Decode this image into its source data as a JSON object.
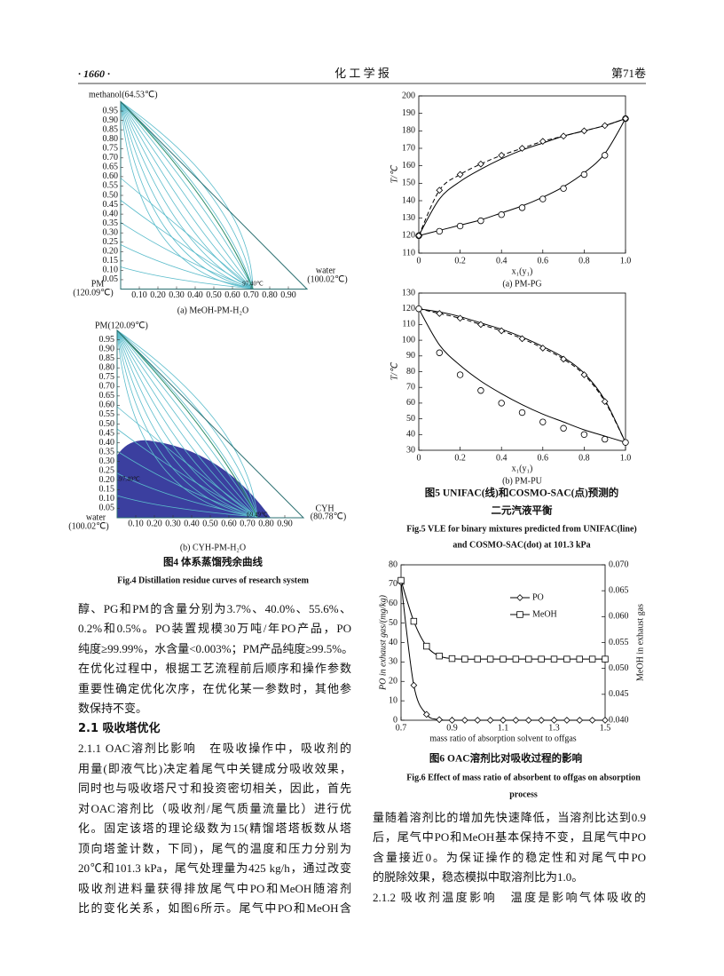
{
  "header": {
    "page": "· 1660 ·",
    "journal": "化 工 学 报",
    "volume": "第71卷"
  },
  "chart_data": [
    {
      "type": "ternary",
      "top_label": "methanol(64.53℃)",
      "left_label": "PM",
      "left_note": "(120.09℃)",
      "right_label": "water",
      "right_note": "(100.02℃)",
      "annotations": [
        "97.40℃"
      ],
      "left_ticks": [
        0.95,
        {
          "value": 0.9,
          "label": "0.90"
        },
        0.85,
        {
          "value": 0.8,
          "label": "0.80"
        },
        0.75,
        {
          "value": 0.7,
          "label": "0.70"
        },
        0.65,
        {
          "value": 0.6,
          "label": "0.60"
        },
        0.55,
        {
          "value": 0.5,
          "label": "0.50"
        },
        0.45,
        {
          "value": 0.4,
          "label": "0.40"
        },
        0.35,
        {
          "value": 0.3,
          "label": "0.30"
        },
        0.25,
        {
          "value": 0.2,
          "label": "0.20"
        },
        0.15,
        {
          "value": 0.1,
          "label": "0.10"
        },
        0.05
      ],
      "bottom_ticks": [
        {
          "value": 0.1,
          "label": "0.10"
        },
        {
          "value": 0.2,
          "label": "0.20"
        },
        {
          "value": 0.3,
          "label": "0.30"
        },
        {
          "value": 0.4,
          "label": "0.40"
        },
        {
          "value": 0.5,
          "label": "0.50"
        },
        {
          "value": 0.6,
          "label": "0.60"
        },
        {
          "value": 0.7,
          "label": "0.70"
        },
        {
          "value": 0.8,
          "label": "0.80"
        },
        {
          "value": 0.9,
          "label": "0.90"
        }
      ],
      "caption": "(a) MeOH-PM-H₂O"
    },
    {
      "type": "ternary",
      "top_label": "PM(120.09℃)",
      "left_label": "water",
      "left_note": "(100.02℃)",
      "right_label": "CYH",
      "right_note": "(80.78℃)",
      "annotations": [
        "97.40℃",
        "69.49℃"
      ],
      "left_ticks": [
        0.95,
        {
          "value": 0.9,
          "label": "0.90"
        },
        0.85,
        {
          "value": 0.8,
          "label": "0.80"
        },
        0.75,
        {
          "value": 0.7,
          "label": "0.70"
        },
        0.65,
        {
          "value": 0.6,
          "label": "0.60"
        },
        0.55,
        {
          "value": 0.5,
          "label": "0.50"
        },
        0.45,
        {
          "value": 0.4,
          "label": "0.40"
        },
        0.35,
        {
          "value": 0.3,
          "label": "0.30"
        },
        0.25,
        {
          "value": 0.2,
          "label": "0.20"
        },
        0.15,
        {
          "value": 0.1,
          "label": "0.10"
        },
        0.05
      ],
      "bottom_ticks": [
        {
          "value": 0.1,
          "label": "0.10"
        },
        {
          "value": 0.2,
          "label": "0.20"
        },
        {
          "value": 0.3,
          "label": "0.30"
        },
        {
          "value": 0.4,
          "label": "0.40"
        },
        {
          "value": 0.5,
          "label": "0.50"
        },
        {
          "value": 0.6,
          "label": "0.60"
        },
        {
          "value": 0.7,
          "label": "0.70"
        },
        {
          "value": 0.8,
          "label": "0.80"
        },
        {
          "value": 0.9,
          "label": "0.90"
        }
      ],
      "caption": "(b) CYH-PM-H₂O"
    },
    {
      "type": "line",
      "ylabel": "T/℃",
      "xlabel": "x₁(y₁)",
      "caption": "(a) PM-PG",
      "x": [
        0,
        0.1,
        0.2,
        0.3,
        0.4,
        0.5,
        0.6,
        0.7,
        0.8,
        0.9,
        1.0
      ],
      "xlim": [
        0,
        1
      ],
      "xticks": [
        0,
        0.2,
        0.4,
        0.6,
        0.8,
        {
          "value": 1,
          "label": "1.0"
        }
      ],
      "ylim": [
        110,
        200
      ],
      "yticks": [
        110,
        120,
        130,
        140,
        150,
        160,
        170,
        180,
        190,
        200
      ],
      "series": [
        {
          "color": "#000000",
          "line": "solid",
          "marker": "none",
          "values": [
            120,
            123,
            126,
            129,
            133,
            137,
            142,
            148,
            156,
            167,
            187
          ]
        },
        {
          "color": "#000000",
          "line": "none",
          "marker": "circle",
          "values": [
            120,
            122.5,
            125.5,
            128.5,
            132,
            136,
            141,
            147,
            155,
            166,
            187
          ]
        },
        {
          "color": "#000000",
          "line": "solid",
          "marker": "none",
          "values": [
            120,
            141,
            151,
            158,
            164,
            169,
            173,
            177,
            180,
            183,
            187
          ]
        },
        {
          "color": "#000000",
          "line": "dashed",
          "marker": "diamond",
          "values": [
            120,
            146,
            155,
            161,
            166,
            170,
            174,
            177,
            180,
            183,
            187
          ]
        }
      ]
    },
    {
      "type": "line",
      "ylabel": "T/℃",
      "xlabel": "x₁(y₁)",
      "caption": "(b) PM-PU",
      "x": [
        0,
        0.1,
        0.2,
        0.3,
        0.4,
        0.5,
        0.6,
        0.7,
        0.8,
        0.9,
        1.0
      ],
      "xlim": [
        0,
        1
      ],
      "xticks": [
        0,
        0.2,
        0.4,
        0.6,
        0.8,
        {
          "value": 1,
          "label": "1.0"
        }
      ],
      "ylim": [
        30,
        130
      ],
      "yticks": [
        30,
        40,
        50,
        60,
        70,
        80,
        90,
        100,
        110,
        120,
        130
      ],
      "series": [
        {
          "color": "#000000",
          "line": "solid",
          "marker": "none",
          "values": [
            120,
            118,
            115,
            111,
            107,
            102,
            96,
            89,
            79,
            62,
            35
          ]
        },
        {
          "color": "#000000",
          "line": "dashed",
          "marker": "diamond",
          "values": [
            120,
            117,
            114,
            110,
            106,
            101,
            95,
            88,
            78,
            61,
            35
          ]
        },
        {
          "color": "#000000",
          "line": "solid",
          "marker": "none",
          "values": [
            120,
            97,
            84,
            74,
            66,
            59,
            53,
            48,
            43,
            39,
            35
          ]
        },
        {
          "color": "#000000",
          "line": "none",
          "marker": "circle",
          "values": [
            120,
            92,
            78,
            68,
            60,
            54,
            48,
            44,
            40,
            37,
            35
          ]
        }
      ]
    },
    {
      "type": "line",
      "ylabel": "PO in exhaust gas/(mg/kg)",
      "y2label": "MeOH in exhaust gas",
      "xlabel": "mass ratio of absorption solvent to offgas",
      "legend": "upper right",
      "x": [
        0.7,
        0.75,
        0.8,
        0.85,
        0.9,
        0.95,
        1.0,
        1.05,
        1.1,
        1.15,
        1.2,
        1.25,
        1.3,
        1.35,
        1.4,
        1.45,
        1.5
      ],
      "xlim": [
        0.7,
        1.5
      ],
      "xticks": [
        0.7,
        0.9,
        1.1,
        1.3,
        1.5
      ],
      "ylim": [
        0,
        80
      ],
      "yticks": [
        0,
        10,
        20,
        30,
        40,
        50,
        60,
        70,
        80
      ],
      "y2lim": [
        0.04,
        0.07
      ],
      "y2ticks": [
        {
          "value": 0.04,
          "label": "0.040"
        },
        0.045,
        {
          "value": 0.05,
          "label": "0.050"
        },
        0.055,
        {
          "value": 0.06,
          "label": "0.060"
        },
        0.065,
        {
          "value": 0.07,
          "label": "0.070"
        }
      ],
      "series": [
        {
          "name": "PO",
          "color": "#000000",
          "line": "solid",
          "marker": "diamond",
          "values": [
            71,
            18,
            3,
            0.3,
            0,
            0,
            0,
            0,
            0,
            0,
            0,
            0,
            0,
            0,
            0,
            0,
            0
          ]
        },
        {
          "name": "MeOH",
          "color": "#000000",
          "line": "solid",
          "marker": "square",
          "axis": "y2",
          "values": [
            0.067,
            0.0591,
            0.0543,
            0.0524,
            0.0519,
            0.0518,
            0.0518,
            0.0518,
            0.0518,
            0.0518,
            0.0518,
            0.0518,
            0.0518,
            0.0518,
            0.0518,
            0.0518,
            0.0518
          ]
        }
      ]
    }
  ],
  "figure4_caption": {
    "cn": "图4 体系蒸馏残余曲线",
    "en": "Fig.4 Distillation residue curves of research system"
  },
  "figure5_caption": {
    "cn": [
      "图5 UNIFAC(线)和COSMO-SAC(点)预测的",
      "二元汽液平衡"
    ],
    "en": [
      "Fig.5 VLE for binary mixtures predicted from UNIFAC(line)",
      "and COSMO-SAC(dot) at 101.3 kPa"
    ]
  },
  "figure6_caption": {
    "cn": "图6 OAC溶剂比对吸收过程的影响",
    "en": [
      "Fig.6 Effect of mass ratio of absorbent to offgas on absorption",
      "process"
    ]
  },
  "body": {
    "left_lines": [
      "醇、PG和PM的含量分别为3.7%、40.0%、55.6%、",
      "0.2%和0.5%。PO装置规模30万吨/年PO产品，PO",
      "纯度≥99.99%，水含量<0.003%；PM产品纯度≥99.5%。",
      "在优化过程中，根据工艺流程前后顺序和操作参数",
      "重要性确定优化次序，在优化某一参数时，其他参",
      "数保持不变。"
    ],
    "heading": "2.1 吸收塔优化",
    "left_lines2": [
      "2.1.1 OAC溶剂比影响　在吸收操作中，吸收剂的",
      "用量(即液气比)决定着尾气中关键成分吸收效果，",
      "同时也与吸收塔尺寸和投资密切相关，因此，首先",
      "对OAC溶剂比（吸收剂/尾气质量流量比）进行优",
      "化。固定该塔的理论级数为15(精馏塔塔板数从塔",
      "顶向塔釜计数，下同)，尾气的温度和压力分别为",
      "20℃和101.3 kPa，尾气处理量为425 kg/h，通过改变",
      "吸收剂进料量获得排放尾气中PO和MeOH随溶剂",
      "比的变化关系，如图6所示。尾气中PO和MeOH含"
    ],
    "right_lines": [
      "量随着溶剂比的增加先快速降低，当溶剂比达到0.9",
      "后，尾气中PO和MeOH基本保持不变，且尾气中PO",
      "含量接近0。为保证操作的稳定性和对尾气中PO",
      "的脱除效果，稳态模拟中取溶剂比为1.0。",
      "2.1.2 吸收剂温度影响　温度是影响气体吸收的"
    ]
  }
}
